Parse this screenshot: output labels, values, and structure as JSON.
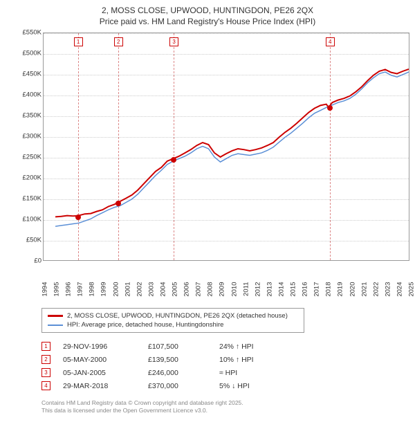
{
  "title_line1": "2, MOSS CLOSE, UPWOOD, HUNTINGDON, PE26 2QX",
  "title_line2": "Price paid vs. HM Land Registry's House Price Index (HPI)",
  "chart": {
    "type": "line",
    "background_color": "#ffffff",
    "grid_color": "#cccccc",
    "border_color": "#999999",
    "xlim": [
      1994,
      2025
    ],
    "ylim": [
      0,
      550000
    ],
    "ytick_step": 50000,
    "ytick_labels": [
      "£0",
      "£50K",
      "£100K",
      "£150K",
      "£200K",
      "£250K",
      "£300K",
      "£350K",
      "£400K",
      "£450K",
      "£500K",
      "£550K"
    ],
    "xtick_step": 1,
    "xtick_labels": [
      "1994",
      "1995",
      "1996",
      "1997",
      "1998",
      "1999",
      "2000",
      "2001",
      "2002",
      "2003",
      "2004",
      "2005",
      "2006",
      "2007",
      "2008",
      "2009",
      "2010",
      "2011",
      "2012",
      "2013",
      "2014",
      "2015",
      "2016",
      "2017",
      "2018",
      "2019",
      "2020",
      "2021",
      "2022",
      "2023",
      "2024",
      "2025"
    ],
    "series": [
      {
        "name": "price_paid",
        "color": "#cc0000",
        "line_width": 2,
        "points": [
          [
            1995.0,
            105000
          ],
          [
            1995.5,
            106000
          ],
          [
            1996.0,
            108000
          ],
          [
            1996.5,
            107000
          ],
          [
            1996.9,
            107500
          ],
          [
            1997.5,
            112000
          ],
          [
            1998.0,
            113000
          ],
          [
            1998.5,
            118000
          ],
          [
            1999.0,
            122000
          ],
          [
            1999.5,
            130000
          ],
          [
            2000.0,
            135000
          ],
          [
            2000.3,
            139500
          ],
          [
            2001.0,
            150000
          ],
          [
            2001.5,
            158000
          ],
          [
            2002.0,
            170000
          ],
          [
            2002.5,
            185000
          ],
          [
            2003.0,
            200000
          ],
          [
            2003.5,
            215000
          ],
          [
            2004.0,
            225000
          ],
          [
            2004.5,
            240000
          ],
          [
            2005.0,
            246000
          ],
          [
            2005.5,
            252000
          ],
          [
            2006.0,
            260000
          ],
          [
            2006.5,
            268000
          ],
          [
            2007.0,
            278000
          ],
          [
            2007.5,
            285000
          ],
          [
            2008.0,
            280000
          ],
          [
            2008.5,
            260000
          ],
          [
            2009.0,
            250000
          ],
          [
            2009.5,
            258000
          ],
          [
            2010.0,
            265000
          ],
          [
            2010.5,
            270000
          ],
          [
            2011.0,
            268000
          ],
          [
            2011.5,
            265000
          ],
          [
            2012.0,
            268000
          ],
          [
            2012.5,
            272000
          ],
          [
            2013.0,
            278000
          ],
          [
            2013.5,
            285000
          ],
          [
            2014.0,
            298000
          ],
          [
            2014.5,
            310000
          ],
          [
            2015.0,
            320000
          ],
          [
            2015.5,
            332000
          ],
          [
            2016.0,
            345000
          ],
          [
            2016.5,
            358000
          ],
          [
            2017.0,
            368000
          ],
          [
            2017.5,
            375000
          ],
          [
            2018.0,
            378000
          ],
          [
            2018.2,
            370000
          ],
          [
            2018.5,
            382000
          ],
          [
            2019.0,
            388000
          ],
          [
            2019.5,
            392000
          ],
          [
            2020.0,
            398000
          ],
          [
            2020.5,
            408000
          ],
          [
            2021.0,
            420000
          ],
          [
            2021.5,
            435000
          ],
          [
            2022.0,
            448000
          ],
          [
            2022.5,
            458000
          ],
          [
            2023.0,
            462000
          ],
          [
            2023.5,
            455000
          ],
          [
            2024.0,
            452000
          ],
          [
            2024.5,
            458000
          ],
          [
            2025.0,
            463000
          ]
        ]
      },
      {
        "name": "hpi",
        "color": "#5b8fd6",
        "line_width": 1.5,
        "points": [
          [
            1995.0,
            82000
          ],
          [
            1995.5,
            84000
          ],
          [
            1996.0,
            86000
          ],
          [
            1996.5,
            88000
          ],
          [
            1997.0,
            90000
          ],
          [
            1997.5,
            95000
          ],
          [
            1998.0,
            100000
          ],
          [
            1998.5,
            108000
          ],
          [
            1999.0,
            115000
          ],
          [
            1999.5,
            122000
          ],
          [
            2000.0,
            128000
          ],
          [
            2000.5,
            132000
          ],
          [
            2001.0,
            140000
          ],
          [
            2001.5,
            148000
          ],
          [
            2002.0,
            160000
          ],
          [
            2002.5,
            175000
          ],
          [
            2003.0,
            190000
          ],
          [
            2003.5,
            205000
          ],
          [
            2004.0,
            218000
          ],
          [
            2004.5,
            232000
          ],
          [
            2005.0,
            240000
          ],
          [
            2005.5,
            246000
          ],
          [
            2006.0,
            252000
          ],
          [
            2006.5,
            260000
          ],
          [
            2007.0,
            270000
          ],
          [
            2007.5,
            276000
          ],
          [
            2008.0,
            270000
          ],
          [
            2008.5,
            250000
          ],
          [
            2009.0,
            238000
          ],
          [
            2009.5,
            246000
          ],
          [
            2010.0,
            254000
          ],
          [
            2010.5,
            258000
          ],
          [
            2011.0,
            256000
          ],
          [
            2011.5,
            254000
          ],
          [
            2012.0,
            257000
          ],
          [
            2012.5,
            260000
          ],
          [
            2013.0,
            266000
          ],
          [
            2013.5,
            274000
          ],
          [
            2014.0,
            286000
          ],
          [
            2014.5,
            298000
          ],
          [
            2015.0,
            308000
          ],
          [
            2015.5,
            320000
          ],
          [
            2016.0,
            332000
          ],
          [
            2016.5,
            345000
          ],
          [
            2017.0,
            356000
          ],
          [
            2017.5,
            363000
          ],
          [
            2018.0,
            370000
          ],
          [
            2018.5,
            376000
          ],
          [
            2019.0,
            382000
          ],
          [
            2019.5,
            386000
          ],
          [
            2020.0,
            392000
          ],
          [
            2020.5,
            402000
          ],
          [
            2021.0,
            415000
          ],
          [
            2021.5,
            430000
          ],
          [
            2022.0,
            442000
          ],
          [
            2022.5,
            452000
          ],
          [
            2023.0,
            456000
          ],
          [
            2023.5,
            448000
          ],
          [
            2024.0,
            444000
          ],
          [
            2024.5,
            450000
          ],
          [
            2025.0,
            456000
          ]
        ]
      }
    ],
    "markers": [
      {
        "n": "1",
        "x": 1996.9,
        "y": 107500
      },
      {
        "n": "2",
        "x": 2000.3,
        "y": 139500
      },
      {
        "n": "3",
        "x": 2005.0,
        "y": 246000
      },
      {
        "n": "4",
        "x": 2018.2,
        "y": 370000
      }
    ]
  },
  "legend": {
    "items": [
      {
        "color": "#cc0000",
        "width": 3,
        "label": "2, MOSS CLOSE, UPWOOD, HUNTINGDON, PE26 2QX (detached house)"
      },
      {
        "color": "#5b8fd6",
        "width": 2,
        "label": "HPI: Average price, detached house, Huntingdonshire"
      }
    ]
  },
  "table": {
    "rows": [
      {
        "n": "1",
        "date": "29-NOV-1996",
        "price": "£107,500",
        "delta": "24% ↑ HPI"
      },
      {
        "n": "2",
        "date": "05-MAY-2000",
        "price": "£139,500",
        "delta": "10% ↑ HPI"
      },
      {
        "n": "3",
        "date": "05-JAN-2005",
        "price": "£246,000",
        "delta": "≈ HPI"
      },
      {
        "n": "4",
        "date": "29-MAR-2018",
        "price": "£370,000",
        "delta": "5% ↓ HPI"
      }
    ]
  },
  "footer_line1": "Contains HM Land Registry data © Crown copyright and database right 2025.",
  "footer_line2": "This data is licensed under the Open Government Licence v3.0."
}
